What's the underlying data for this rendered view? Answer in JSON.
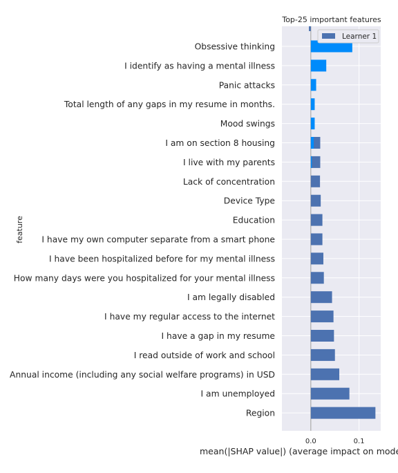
{
  "chart_data": {
    "type": "bar",
    "orientation": "horizontal",
    "title": "Top-25 important features",
    "xlabel": "mean(|SHAP value|) (average impact on model ou",
    "ylabel": "feature",
    "xlim": [
      -0.06,
      0.145
    ],
    "xticks": [
      "0.0",
      "0.1"
    ],
    "grid": true,
    "legend_position": "top-right",
    "categories": [
      "Obsessive thinking",
      "I identify as having a mental illness",
      "Panic attacks",
      "Total length of any gaps in my resume in months.",
      "Mood swings",
      "I am on section 8 housing",
      "I live with my parents",
      "Lack of concentration",
      "Device Type",
      "Education",
      "I have my own computer separate from a smart phone",
      "I have been hospitalized before for my mental illness",
      "How many days were you hospitalized for your mental illness",
      "I am legally disabled",
      "I have my regular access to the internet",
      "I have a gap in my resume",
      "I read outside of work and school",
      "Annual income (including any social welfare programs) in USD",
      "I am unemployed",
      "Region"
    ],
    "series": [
      {
        "name": "Learner 1",
        "color": "#4c72b0",
        "values": [
          0.0,
          0.0,
          0.0,
          0.0,
          0.0,
          0.0195,
          0.0195,
          0.019,
          0.0205,
          0.024,
          0.024,
          0.026,
          0.027,
          0.044,
          0.047,
          0.048,
          0.05,
          0.059,
          0.08,
          0.134
        ]
      }
    ],
    "overlay_series": {
      "color": "#008bfb",
      "values": [
        0.086,
        0.032,
        0.011,
        0.008,
        0.008,
        0.006,
        0.002,
        0,
        0,
        0,
        0,
        0,
        0,
        0,
        0,
        0,
        0,
        0,
        0,
        0
      ]
    },
    "clipped_top_bar": {
      "value": -0.004,
      "color": "#4c72b0"
    }
  }
}
